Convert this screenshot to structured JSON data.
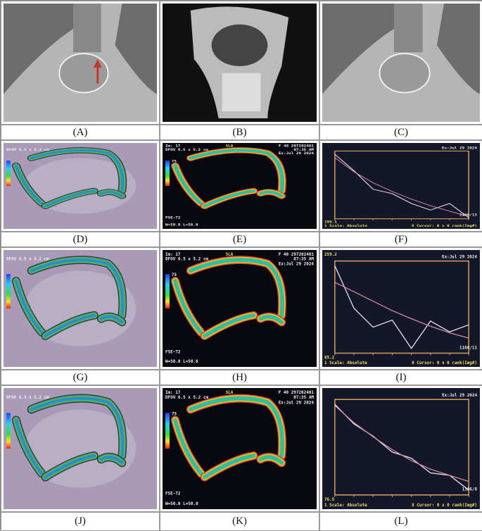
{
  "panels": [
    {
      "id": "A",
      "label": "(A)",
      "kind": "mri-sagittal-arrow"
    },
    {
      "id": "B",
      "label": "(B)",
      "kind": "mri-coronal"
    },
    {
      "id": "C",
      "label": "(C)",
      "kind": "mri-sagittal"
    },
    {
      "id": "D",
      "label": "(D)",
      "kind": "t2map-overlay"
    },
    {
      "id": "E",
      "label": "(E)",
      "kind": "t2map"
    },
    {
      "id": "F",
      "label": "(F)",
      "kind": "chart"
    },
    {
      "id": "G",
      "label": "(G)",
      "kind": "t2map-overlay"
    },
    {
      "id": "H",
      "label": "(H)",
      "kind": "t2map"
    },
    {
      "id": "I",
      "label": "(I)",
      "kind": "chart"
    },
    {
      "id": "J",
      "label": "(J)",
      "kind": "t2map-overlay"
    },
    {
      "id": "K",
      "label": "(K)",
      "kind": "t2map"
    },
    {
      "id": "L",
      "label": "(L)",
      "kind": "chart"
    }
  ],
  "t2map_text": {
    "slice": "Im: 17",
    "fov": "DFOV 6.5 x 5.2 cm",
    "orient": "SLA",
    "patient": "F 40 297202401",
    "time": "07:35 AM",
    "date": "Ex:Jul 29 2024",
    "scale_max": "75",
    "seq": "FSE-T2",
    "window": "W=50.0 L=50.0"
  },
  "colors": {
    "chart_bg": "#14162a",
    "chart_frame": "#d9a05a",
    "measured": "#e8e8f0",
    "fit": "#d88a9a"
  },
  "chart_data": [
    {
      "type": "line",
      "panel": "F",
      "ymin_label": "199.1",
      "corner_label": "1166/13",
      "footer_left": "1 Scale: Absolute",
      "footer_right": "8 Cursor: 0 x 0 rank(Img#)",
      "date": "Ex:Jul 29 2024",
      "x": [
        1,
        2,
        3,
        4,
        5,
        6,
        7,
        8
      ],
      "ylim": [
        200,
        820
      ],
      "series": [
        {
          "name": "measured",
          "values": [
            790,
            640,
            470,
            430,
            340,
            280,
            340,
            210
          ]
        },
        {
          "name": "fit",
          "values": [
            760,
            630,
            530,
            450,
            380,
            320,
            270,
            220
          ]
        }
      ]
    },
    {
      "type": "line",
      "panel": "I",
      "ymax_label": "259.2",
      "ymin_label": "65.2",
      "corner_label": "1166/11",
      "footer_left": "1 Scale: Absolute",
      "footer_right": "8 Cursor: 0 x 0 rank(Img#)",
      "date": "Ex:Jul 29 2024",
      "x": [
        1,
        2,
        3,
        4,
        5,
        6,
        7,
        8
      ],
      "ylim": [
        65,
        260
      ],
      "series": [
        {
          "name": "measured",
          "values": [
            250,
            160,
            120,
            135,
            75,
            133,
            110,
            125
          ]
        },
        {
          "name": "fit",
          "values": [
            215,
            195,
            175,
            155,
            138,
            122,
            108,
            97
          ]
        }
      ]
    },
    {
      "type": "line",
      "panel": "L",
      "ymin_label": "76.5",
      "corner_label": "1166/8",
      "footer_left": "1 Scale: Absolute",
      "footer_right": "8 Cursor: 0 x 0 rank(Img#)",
      "date": "Ex:Jul 29 2024",
      "x": [
        1,
        2,
        3,
        4,
        5,
        6,
        7,
        8
      ],
      "ylim": [
        80,
        860
      ],
      "series": [
        {
          "name": "measured",
          "values": [
            820,
            660,
            560,
            430,
            380,
            260,
            240,
            120
          ]
        },
        {
          "name": "fit",
          "values": [
            810,
            670,
            555,
            450,
            360,
            290,
            240,
            190
          ]
        }
      ]
    }
  ]
}
